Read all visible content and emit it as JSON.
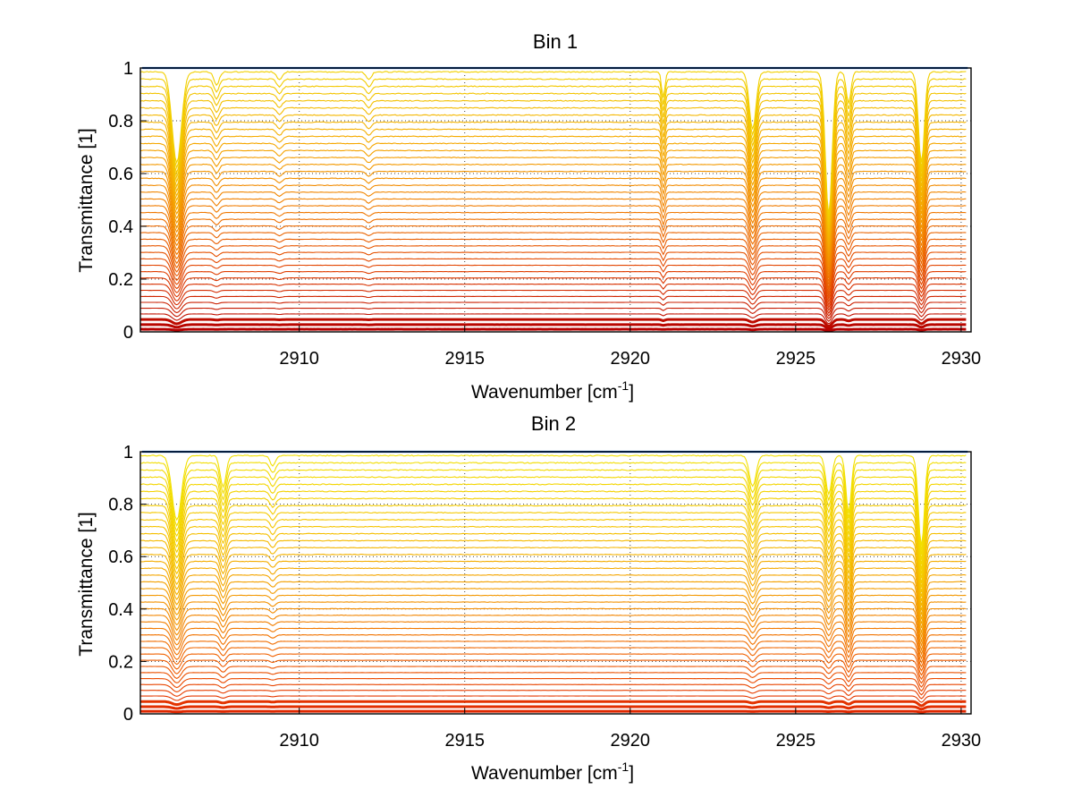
{
  "colors": {
    "background": "#ffffff",
    "axis": "#000000",
    "baseline": "#1060d0"
  },
  "chart_data": [
    {
      "type": "line",
      "title": "Bin 1",
      "xlabel": "Wavenumber [cm",
      "xlabel_sup": "-1",
      "xlabel_end": "]",
      "ylabel": "Transmittance [1]",
      "xlim": [
        2905.2,
        2930.3
      ],
      "ylim": [
        0,
        1
      ],
      "xticks": [
        2910,
        2915,
        2920,
        2925,
        2930
      ],
      "xtick_labels": [
        "2910",
        "2915",
        "2920",
        "2925",
        "2930"
      ],
      "yticks": [
        0,
        0.2,
        0.4,
        0.6,
        0.8,
        1
      ],
      "ytick_labels": [
        "0",
        "0.2",
        "0.4",
        "0.6",
        "0.8",
        "1"
      ],
      "grid": true,
      "series_count": 40,
      "series_levels_description": "family of transmittance spectra, baseline levels from ~0.01 up to 1.0",
      "color_scale": [
        "#b40000",
        "#e03c00",
        "#f07a00",
        "#f5a800",
        "#f2d000"
      ],
      "absorption_lines": [
        {
          "x": 2906.3,
          "rel_depth": 0.35,
          "width": 0.14
        },
        {
          "x": 2907.5,
          "rel_depth": 0.05,
          "width": 0.08
        },
        {
          "x": 2909.4,
          "rel_depth": 0.03,
          "width": 0.08
        },
        {
          "x": 2912.1,
          "rel_depth": 0.03,
          "width": 0.08
        },
        {
          "x": 2921.0,
          "rel_depth": 0.1,
          "width": 0.05
        },
        {
          "x": 2923.7,
          "rel_depth": 0.22,
          "width": 0.1
        },
        {
          "x": 2926.0,
          "rel_depth": 0.55,
          "width": 0.1
        },
        {
          "x": 2926.6,
          "rel_depth": 0.12,
          "width": 0.07
        },
        {
          "x": 2928.8,
          "rel_depth": 0.35,
          "width": 0.09
        }
      ]
    },
    {
      "type": "line",
      "title": "Bin 2",
      "xlabel": "Wavenumber [cm",
      "xlabel_sup": "-1",
      "xlabel_end": "]",
      "ylabel": "Transmittance [1]",
      "xlim": [
        2905.2,
        2930.3
      ],
      "ylim": [
        0,
        1
      ],
      "xticks": [
        2910,
        2915,
        2920,
        2925,
        2930
      ],
      "xtick_labels": [
        "2910",
        "2915",
        "2920",
        "2925",
        "2930"
      ],
      "yticks": [
        0,
        0.2,
        0.4,
        0.6,
        0.8,
        1
      ],
      "ytick_labels": [
        "0",
        "0.2",
        "0.4",
        "0.6",
        "0.8",
        "1"
      ],
      "grid": true,
      "series_count": 40,
      "series_levels_description": "family of transmittance spectra, baseline levels from ~0.01 up to 1.0",
      "color_scale": [
        "#e02800",
        "#f06000",
        "#f39a00",
        "#f5c400",
        "#f2e000"
      ],
      "absorption_lines": [
        {
          "x": 2906.3,
          "rel_depth": 0.25,
          "width": 0.14
        },
        {
          "x": 2907.7,
          "rel_depth": 0.12,
          "width": 0.09
        },
        {
          "x": 2909.2,
          "rel_depth": 0.04,
          "width": 0.08
        },
        {
          "x": 2923.7,
          "rel_depth": 0.12,
          "width": 0.1
        },
        {
          "x": 2926.0,
          "rel_depth": 0.15,
          "width": 0.09
        },
        {
          "x": 2926.6,
          "rel_depth": 0.22,
          "width": 0.08
        },
        {
          "x": 2928.8,
          "rel_depth": 0.35,
          "width": 0.09
        }
      ]
    }
  ]
}
